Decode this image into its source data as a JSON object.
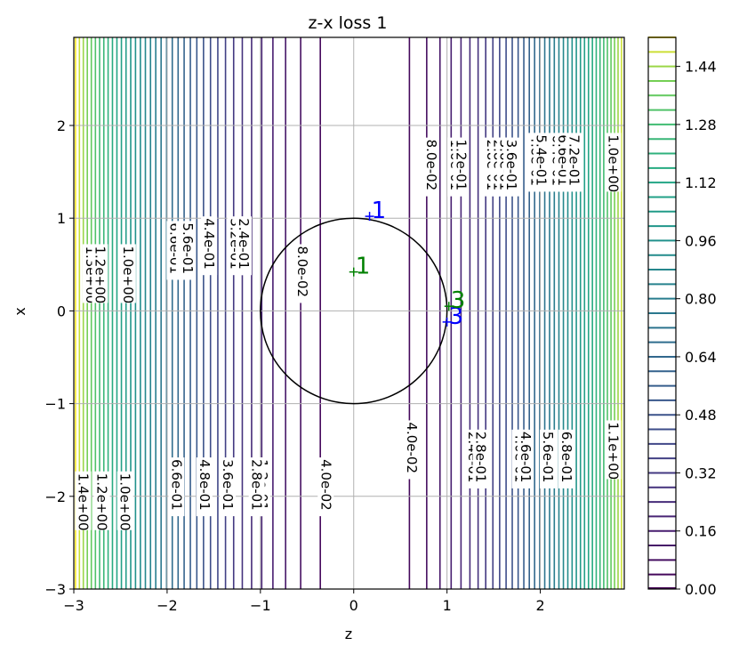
{
  "chart_data": {
    "type": "contour",
    "title": "z-x loss 1",
    "xlabel": "z",
    "ylabel": "x",
    "xlim": [
      -3,
      2.9
    ],
    "ylim": [
      -3,
      2.95
    ],
    "grid": true,
    "x_ticks": [
      {
        "value": -3,
        "label": "−3"
      },
      {
        "value": -2,
        "label": "−2"
      },
      {
        "value": -1,
        "label": "−1"
      },
      {
        "value": 0,
        "label": "0"
      },
      {
        "value": 1,
        "label": "1"
      },
      {
        "value": 2,
        "label": "2"
      }
    ],
    "y_ticks": [
      {
        "value": -3,
        "label": "−3"
      },
      {
        "value": -2,
        "label": "−2"
      },
      {
        "value": -1,
        "label": "−1"
      },
      {
        "value": 0,
        "label": "0"
      },
      {
        "value": 1,
        "label": "1"
      },
      {
        "value": 2,
        "label": "2"
      }
    ],
    "colormap": "viridis",
    "level_min": 0.0,
    "level_max": 1.52,
    "level_step": 0.04,
    "colorbar": {
      "ticks": [
        {
          "value": 0.0,
          "label": "0.00"
        },
        {
          "value": 0.16,
          "label": "0.16"
        },
        {
          "value": 0.32,
          "label": "0.32"
        },
        {
          "value": 0.48,
          "label": "0.48"
        },
        {
          "value": 0.64,
          "label": "0.64"
        },
        {
          "value": 0.8,
          "label": "0.80"
        },
        {
          "value": 0.96,
          "label": "0.96"
        },
        {
          "value": 1.12,
          "label": "1.12"
        },
        {
          "value": 1.28,
          "label": "1.28"
        },
        {
          "value": 1.44,
          "label": "1.44"
        }
      ]
    },
    "circle": {
      "center": [
        0,
        0
      ],
      "radius": 1,
      "color": "#000000"
    },
    "markers": [
      {
        "label": "1",
        "color": "#0000ff",
        "x": 0.17,
        "y": 1.02
      },
      {
        "label": "3",
        "color": "#0000ff",
        "x": 1.0,
        "y": -0.12
      },
      {
        "label": "1",
        "color": "#008000",
        "x": 0.0,
        "y": 0.42
      },
      {
        "label": "3",
        "color": "#008000",
        "x": 1.02,
        "y": 0.05
      }
    ],
    "contour_labels": [
      {
        "text": "1.3e+00",
        "x": -2.82,
        "y": 0.7
      },
      {
        "text": "1.2e+00",
        "x": -2.72,
        "y": 0.7
      },
      {
        "text": "1.0e+00",
        "x": -2.42,
        "y": 0.7
      },
      {
        "text": "6.6e-01",
        "x": -1.92,
        "y": 0.95
      },
      {
        "text": "6.0e-01",
        "x": -1.82,
        "y": 0.95
      },
      {
        "text": "5.6e-01",
        "x": -1.78,
        "y": 0.95
      },
      {
        "text": "4.4e-01",
        "x": -1.55,
        "y": 1.0
      },
      {
        "text": "3.2e-01",
        "x": -1.27,
        "y": 1.0
      },
      {
        "text": "2.4e-01",
        "x": -1.18,
        "y": 1.0
      },
      {
        "text": "8.0e-02",
        "x": -0.55,
        "y": 0.7
      },
      {
        "text": "8.0e-02",
        "x": 0.83,
        "y": 1.85
      },
      {
        "text": "1.6e-01",
        "x": 1.09,
        "y": 1.85
      },
      {
        "text": "1.2e-01",
        "x": 1.15,
        "y": 1.85
      },
      {
        "text": "2.8e-01",
        "x": 1.48,
        "y": 1.85
      },
      {
        "text": "2.8e-01",
        "x": 1.55,
        "y": 1.85
      },
      {
        "text": "3.6e-01",
        "x": 1.62,
        "y": 1.85
      },
      {
        "text": "3.6e-01",
        "x": 1.69,
        "y": 1.85
      },
      {
        "text": "4.8e-01",
        "x": 1.95,
        "y": 1.9
      },
      {
        "text": "5.4e-01",
        "x": 2.01,
        "y": 1.9
      },
      {
        "text": "6.4e-01",
        "x": 2.18,
        "y": 1.9
      },
      {
        "text": "6.6e-01",
        "x": 2.24,
        "y": 1.9
      },
      {
        "text": "7.2e-01",
        "x": 2.36,
        "y": 1.9
      },
      {
        "text": "1.0e+00",
        "x": 2.78,
        "y": 1.9
      },
      {
        "text": "4.0e-02",
        "x": -0.3,
        "y": -1.6
      },
      {
        "text": "4.0e-02",
        "x": 0.62,
        "y": -1.2
      },
      {
        "text": "2.4e-01",
        "x": 1.28,
        "y": -1.3
      },
      {
        "text": "2.8e-01",
        "x": 1.36,
        "y": -1.3
      },
      {
        "text": "4.0e-01",
        "x": 1.78,
        "y": -1.3
      },
      {
        "text": "4.6e-01",
        "x": 1.84,
        "y": -1.3
      },
      {
        "text": "5.6e-01",
        "x": 2.08,
        "y": -1.3
      },
      {
        "text": "6.8e-01",
        "x": 2.28,
        "y": -1.3
      },
      {
        "text": "1.2e-01",
        "x": -0.98,
        "y": -1.6
      },
      {
        "text": "2.8e-01",
        "x": -1.04,
        "y": -1.6
      },
      {
        "text": "3.6e-01",
        "x": -1.35,
        "y": -1.6
      },
      {
        "text": "4.8e-01",
        "x": -1.6,
        "y": -1.6
      },
      {
        "text": "6.6e-01",
        "x": -1.9,
        "y": -1.6
      },
      {
        "text": "1.4e+00",
        "x": -2.9,
        "y": -1.75
      },
      {
        "text": "1.2e+00",
        "x": -2.7,
        "y": -1.75
      },
      {
        "text": "1.0e+00",
        "x": -2.45,
        "y": -1.75
      },
      {
        "text": "1.1e+00",
        "x": 2.78,
        "y": -1.2
      }
    ]
  }
}
